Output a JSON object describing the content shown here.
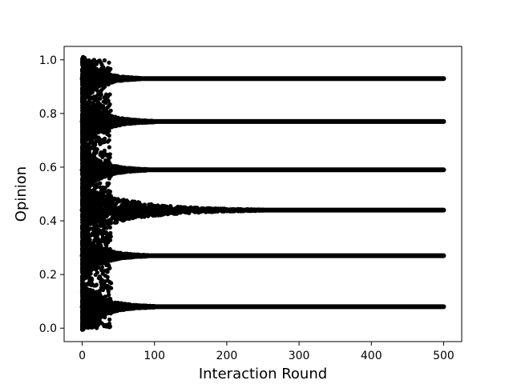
{
  "chart_data": {
    "type": "scatter",
    "xlabel": "Interaction Round",
    "ylabel": "Opinion",
    "xlim": [
      -25,
      525
    ],
    "ylim": [
      -0.05,
      1.05
    ],
    "xticks": [
      0,
      100,
      200,
      300,
      400,
      500
    ],
    "xtick_labels": [
      "0",
      "100",
      "200",
      "300",
      "400",
      "500"
    ],
    "yticks": [
      0.0,
      0.2,
      0.4,
      0.6,
      0.8,
      1.0
    ],
    "ytick_labels": [
      "0.0",
      "0.2",
      "0.4",
      "0.6",
      "0.8",
      "1.0"
    ],
    "grid": false,
    "marker_color": "#000000",
    "rounds": [
      0,
      500
    ],
    "initial_opinion_range": [
      0.0,
      1.0
    ],
    "clusters": [
      {
        "opinion": 0.93,
        "converged_round": 80
      },
      {
        "opinion": 0.77,
        "converged_round": 100
      },
      {
        "opinion": 0.59,
        "converged_round": 90
      },
      {
        "opinion": 0.44,
        "converged_round": 250
      },
      {
        "opinion": 0.27,
        "converged_round": 90
      },
      {
        "opinion": 0.08,
        "converged_round": 100
      }
    ]
  }
}
